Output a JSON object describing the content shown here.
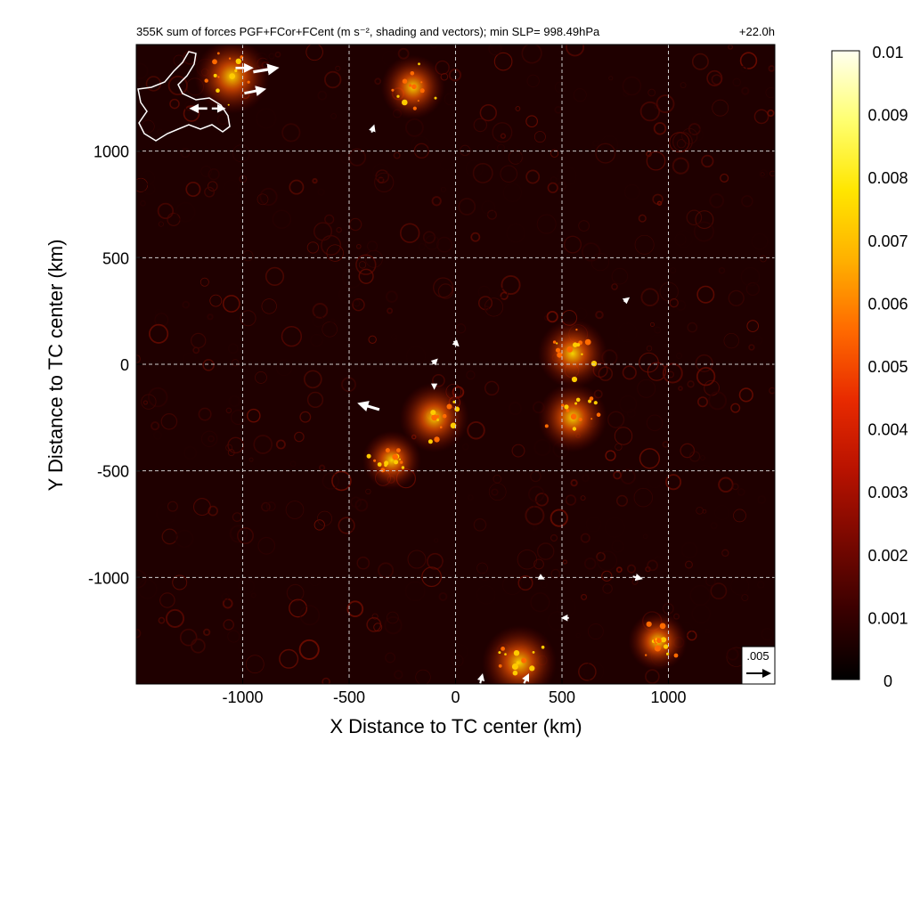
{
  "chart_data": {
    "type": "heatmap",
    "title": "355K sum of forces PGF+FCor+FCent (m s⁻², shading and vectors); min SLP= 998.49hPa",
    "time_label": "+22.0h",
    "xlabel": "X Distance to TC center (km)",
    "ylabel": "Y Distance to TC center (km)",
    "xlim": [
      -1500,
      1500
    ],
    "ylim": [
      -1500,
      1500
    ],
    "x_ticks": [
      -1000,
      -500,
      0,
      500,
      1000
    ],
    "x_tick_labels": [
      "-1000",
      "-500",
      "0",
      "500",
      "1000"
    ],
    "y_ticks": [
      -1000,
      -500,
      0,
      500,
      1000
    ],
    "y_tick_labels": [
      "-1000",
      "-500",
      "0",
      "500",
      "1000"
    ],
    "grid": true,
    "colorbar": {
      "min": 0,
      "max": 0.01,
      "tick_values": [
        0,
        0.001,
        0.002,
        0.003,
        0.004,
        0.005,
        0.006,
        0.007,
        0.008,
        0.009,
        0.01
      ],
      "tick_labels": [
        "0",
        "0.001",
        "0.002",
        "0.003",
        "0.004",
        "0.005",
        "0.006",
        "0.007",
        "0.008",
        "0.009",
        "0.01"
      ],
      "colors": [
        "#000000",
        "#3a0000",
        "#7a0800",
        "#b81200",
        "#e82a00",
        "#ff6a00",
        "#ffb000",
        "#ffe600",
        "#ffff70",
        "#fffff0"
      ]
    },
    "reference_vector": {
      "label": ".005",
      "value": 0.005
    },
    "hotspots": [
      {
        "x": -1050,
        "y": 1350,
        "intensity": 0.008
      },
      {
        "x": -200,
        "y": 1300,
        "intensity": 0.006
      },
      {
        "x": -100,
        "y": -250,
        "intensity": 0.007
      },
      {
        "x": -300,
        "y": -450,
        "intensity": 0.005
      },
      {
        "x": 550,
        "y": 50,
        "intensity": 0.007
      },
      {
        "x": 550,
        "y": -250,
        "intensity": 0.007
      },
      {
        "x": 300,
        "y": -1400,
        "intensity": 0.008
      },
      {
        "x": 950,
        "y": -1300,
        "intensity": 0.005
      }
    ],
    "vectors": [
      {
        "x": -1000,
        "y": 1390,
        "u": 0.004,
        "v": 0.0
      },
      {
        "x": -900,
        "y": 1380,
        "u": 0.006,
        "v": 0.001
      },
      {
        "x": -950,
        "y": 1280,
        "u": 0.005,
        "v": 0.001
      },
      {
        "x": -1200,
        "y": 1200,
        "u": -0.004,
        "v": 0.0
      },
      {
        "x": -1120,
        "y": 1200,
        "u": 0.003,
        "v": 0.0
      },
      {
        "x": -390,
        "y": 1100,
        "u": 0.0005,
        "v": 0.0015
      },
      {
        "x": -400,
        "y": -200,
        "u": -0.005,
        "v": 0.0015
      },
      {
        "x": -100,
        "y": 10,
        "u": 0.001,
        "v": 0.001
      },
      {
        "x": -100,
        "y": -100,
        "u": 0.0,
        "v": -0.001
      },
      {
        "x": 0,
        "y": 100,
        "u": 0.001,
        "v": -0.001
      },
      {
        "x": 850,
        "y": -1000,
        "u": 0.002,
        "v": -0.0005
      },
      {
        "x": 400,
        "y": -1000,
        "u": 0.001,
        "v": -0.0005
      },
      {
        "x": 520,
        "y": -1190,
        "u": -0.0015,
        "v": 0.0
      },
      {
        "x": 330,
        "y": -1480,
        "u": 0.001,
        "v": 0.002
      },
      {
        "x": 120,
        "y": -1480,
        "u": 0.0005,
        "v": 0.002
      },
      {
        "x": 800,
        "y": 300,
        "u": 0.001,
        "v": 0.0008
      }
    ]
  }
}
